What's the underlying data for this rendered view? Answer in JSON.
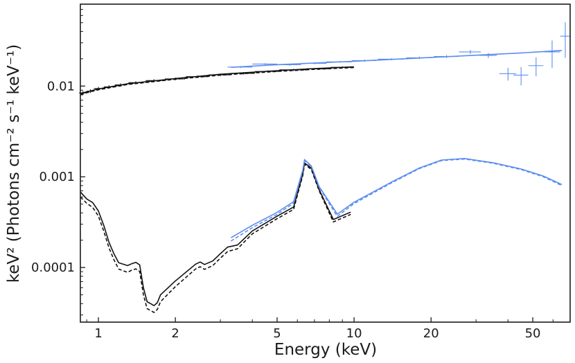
{
  "chart_data": {
    "type": "line",
    "title": "",
    "xlabel": "Energy (keV)",
    "ylabel": "keV² (Photons cm⁻² s⁻¹ keV⁻¹)",
    "xscale": "log",
    "yscale": "log",
    "xlim": [
      0.85,
      70
    ],
    "ylim": [
      2.5e-05,
      0.08
    ],
    "grid": false,
    "legend": "none",
    "xticks": [
      {
        "value": 1,
        "label": "1"
      },
      {
        "value": 2,
        "label": "2"
      },
      {
        "value": 5,
        "label": "5"
      },
      {
        "value": 10,
        "label": "10"
      },
      {
        "value": 20,
        "label": "20"
      },
      {
        "value": 50,
        "label": "50"
      }
    ],
    "yticks": [
      {
        "value": 0.01,
        "label": "0.01"
      },
      {
        "value": 0.001,
        "label": "0.001"
      },
      {
        "value": 0.0001,
        "label": "0.0001"
      }
    ],
    "colors": {
      "soft": "#111111",
      "hard": "#5b8def",
      "frame": "#1a1a1a"
    },
    "series": [
      {
        "name": "soft-total-model",
        "color": "#111111",
        "dash": "solid",
        "x": [
          0.85,
          1.0,
          1.3,
          2.0,
          3.0,
          5.0,
          7.0,
          10.0
        ],
        "y": [
          0.0083,
          0.0093,
          0.0106,
          0.0121,
          0.0135,
          0.0148,
          0.0156,
          0.0163
        ]
      },
      {
        "name": "soft-total-model-alt",
        "color": "#111111",
        "dash": "dashed",
        "x": [
          0.85,
          1.0,
          1.3,
          2.0,
          3.0,
          5.0,
          7.0,
          10.0
        ],
        "y": [
          0.0081,
          0.0091,
          0.0104,
          0.0119,
          0.0132,
          0.0145,
          0.0153,
          0.016
        ]
      },
      {
        "name": "hard-total-model",
        "color": "#5b8def",
        "dash": "solid",
        "x": [
          3.3,
          5.0,
          10.0,
          20.0,
          30.0,
          45.0,
          65.0
        ],
        "y": [
          0.0161,
          0.0172,
          0.0188,
          0.0207,
          0.0219,
          0.0232,
          0.0247
        ]
      },
      {
        "name": "soft-component-model",
        "color": "#111111",
        "dash": "solid",
        "x": [
          0.85,
          0.9,
          0.95,
          1.0,
          1.05,
          1.1,
          1.15,
          1.2,
          1.3,
          1.35,
          1.4,
          1.45,
          1.5,
          1.55,
          1.6,
          1.65,
          1.7,
          1.75,
          2.0,
          2.4,
          2.5,
          2.6,
          2.8,
          3.0,
          3.2,
          3.5,
          4.0,
          5.0,
          5.8,
          6.3,
          6.4,
          6.8,
          7.3,
          8.3,
          9.7
        ],
        "y": [
          0.00068,
          0.00057,
          0.00052,
          0.00042,
          0.00029,
          0.00019,
          0.000142,
          0.000113,
          0.000105,
          0.00011,
          0.000114,
          0.000107,
          6e-05,
          4.2e-05,
          4e-05,
          3.8e-05,
          4.1e-05,
          5e-05,
          7.1e-05,
          0.000109,
          0.000115,
          0.000108,
          0.000118,
          0.000142,
          0.000168,
          0.000177,
          0.000253,
          0.000368,
          0.000465,
          0.00108,
          0.00142,
          0.00125,
          0.00072,
          0.000338,
          0.000408
        ]
      },
      {
        "name": "soft-component-model-alt",
        "color": "#111111",
        "dash": "dashed",
        "x": [
          0.85,
          0.9,
          0.95,
          1.0,
          1.05,
          1.1,
          1.15,
          1.2,
          1.3,
          1.35,
          1.4,
          1.45,
          1.5,
          1.55,
          1.6,
          1.65,
          1.7,
          1.75,
          2.0,
          2.4,
          2.5,
          2.6,
          2.8,
          3.0,
          3.2,
          3.5,
          4.0,
          5.0,
          5.8,
          6.3,
          6.4,
          6.8,
          7.3,
          8.3,
          9.7
        ],
        "y": [
          0.0006,
          0.00051,
          0.00046,
          0.00037,
          0.00025,
          0.000165,
          0.000122,
          9.61e-05,
          8.85e-05,
          9.35e-05,
          9.65e-05,
          9.05e-05,
          5.02e-05,
          3.53e-05,
          3.35e-05,
          3.2e-05,
          3.45e-05,
          4.2e-05,
          6.15e-05,
          9.65e-05,
          0.000102,
          9.55e-05,
          0.000105,
          0.000127,
          0.00015,
          0.000161,
          0.000235,
          0.000345,
          0.000438,
          0.00104,
          0.00137,
          0.00121,
          0.0007,
          0.000318,
          0.000385
        ]
      },
      {
        "name": "hard-component-model",
        "color": "#5b8def",
        "dash": "solid",
        "x": [
          3.3,
          4.0,
          5.0,
          5.8,
          6.3,
          6.4,
          6.8,
          7.3,
          8.6,
          10.0,
          14.0,
          18.0,
          22.0,
          27.0,
          35.0,
          45.0,
          55.0,
          65.0
        ],
        "y": [
          0.000213,
          0.000292,
          0.000405,
          0.000533,
          0.00119,
          0.00155,
          0.00132,
          0.00078,
          0.000388,
          0.000525,
          0.000873,
          0.00125,
          0.00153,
          0.00159,
          0.00143,
          0.00122,
          0.00102,
          0.00082
        ]
      },
      {
        "name": "hard-component-model-alt",
        "color": "#5b8def",
        "dash": "dashed",
        "x": [
          3.3,
          4.0,
          5.0,
          5.8,
          6.3,
          6.4,
          6.8,
          7.3,
          8.6,
          10.0,
          14.0,
          18.0,
          22.0,
          27.0,
          35.0,
          45.0,
          55.0,
          65.0
        ],
        "y": [
          0.000196,
          0.000275,
          0.000385,
          0.000512,
          0.00116,
          0.00151,
          0.0013,
          0.00076,
          0.000366,
          0.000507,
          0.000856,
          0.00123,
          0.00151,
          0.00157,
          0.00141,
          0.0012,
          0.001,
          0.0008
        ]
      }
    ],
    "data_points": [
      {
        "name": "soft-spectrum",
        "color": "#111111",
        "points": [
          {
            "x": 0.87,
            "y": 0.0084,
            "xerr": 0.03,
            "yerr": 0.0004
          },
          {
            "x": 0.93,
            "y": 0.0088,
            "xerr": 0.03,
            "yerr": 0.0004
          },
          {
            "x": 1.0,
            "y": 0.0094,
            "xerr": 0.04,
            "yerr": 0.0004
          },
          {
            "x": 1.1,
            "y": 0.0098,
            "xerr": 0.05,
            "yerr": 0.0004
          },
          {
            "x": 1.22,
            "y": 0.0103,
            "xerr": 0.06,
            "yerr": 0.0004
          },
          {
            "x": 1.4,
            "y": 0.0109,
            "xerr": 0.09,
            "yerr": 0.0004
          },
          {
            "x": 1.65,
            "y": 0.0115,
            "xerr": 0.12,
            "yerr": 0.0004
          },
          {
            "x": 2.0,
            "y": 0.012,
            "xerr": 0.18,
            "yerr": 0.0004
          },
          {
            "x": 2.45,
            "y": 0.0127,
            "xerr": 0.25,
            "yerr": 0.0004
          },
          {
            "x": 3.0,
            "y": 0.0133,
            "xerr": 0.3,
            "yerr": 0.0004
          },
          {
            "x": 3.7,
            "y": 0.0138,
            "xerr": 0.4,
            "yerr": 0.0004
          },
          {
            "x": 4.6,
            "y": 0.0145,
            "xerr": 0.5,
            "yerr": 0.0004
          },
          {
            "x": 5.8,
            "y": 0.0151,
            "xerr": 0.7,
            "yerr": 0.0004
          },
          {
            "x": 7.3,
            "y": 0.0155,
            "xerr": 0.8,
            "yerr": 0.0004
          },
          {
            "x": 9.0,
            "y": 0.0161,
            "xerr": 0.9,
            "yerr": 0.0004
          }
        ]
      },
      {
        "name": "hard-spectrum",
        "color": "#5b8def",
        "points": [
          {
            "x": 3.6,
            "y": 0.0162,
            "xerr": 0.4,
            "yerr": 0.0004
          },
          {
            "x": 4.5,
            "y": 0.0175,
            "xerr": 0.5,
            "yerr": 0.0004
          },
          {
            "x": 5.6,
            "y": 0.0172,
            "xerr": 0.6,
            "yerr": 0.0004
          },
          {
            "x": 7.0,
            "y": 0.0178,
            "xerr": 0.8,
            "yerr": 0.0004
          },
          {
            "x": 8.8,
            "y": 0.0185,
            "xerr": 1.0,
            "yerr": 0.0004
          },
          {
            "x": 11.0,
            "y": 0.0191,
            "xerr": 1.2,
            "yerr": 0.0005
          },
          {
            "x": 14.0,
            "y": 0.0198,
            "xerr": 1.6,
            "yerr": 0.0005
          },
          {
            "x": 18.0,
            "y": 0.0205,
            "xerr": 2.0,
            "yerr": 0.0006
          },
          {
            "x": 23.0,
            "y": 0.0212,
            "xerr": 2.5,
            "yerr": 0.0008
          },
          {
            "x": 28.5,
            "y": 0.0238,
            "xerr": 2.8,
            "yerr": 0.0012
          },
          {
            "x": 33.5,
            "y": 0.0218,
            "xerr": 2.7,
            "yerr": 0.0014
          },
          {
            "x": 40.0,
            "y": 0.0137,
            "xerr": 3.0,
            "yerr": 0.0022
          },
          {
            "x": 45.0,
            "y": 0.0132,
            "xerr": 3.0,
            "yerr": 0.003
          },
          {
            "x": 51.5,
            "y": 0.0168,
            "xerr": 3.5,
            "yerr": 0.004
          },
          {
            "x": 59.5,
            "y": 0.0238,
            "xerr": 4.5,
            "yerr": 0.008
          },
          {
            "x": 67.0,
            "y": 0.0355,
            "xerr": 3.0,
            "yerr": 0.015
          }
        ]
      }
    ]
  }
}
